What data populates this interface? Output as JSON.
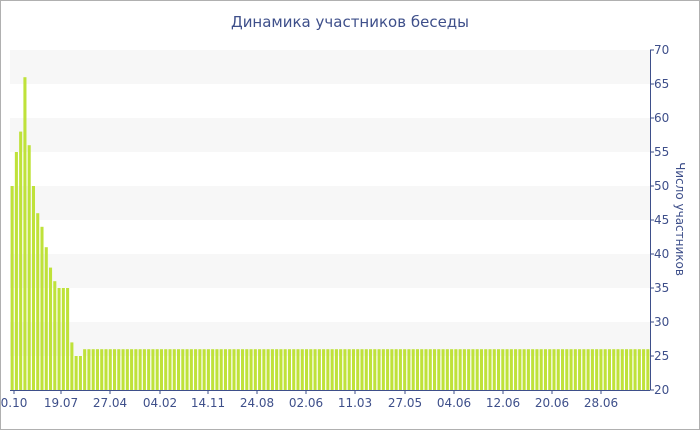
{
  "chart_data": {
    "type": "bar",
    "title": "Динамика участников беседы",
    "ylabel": "Число участников",
    "ylim": [
      20,
      70
    ],
    "yticks": [
      20,
      25,
      30,
      35,
      40,
      45,
      50,
      55,
      60,
      65,
      70
    ],
    "y_axis_position": "right",
    "bar_color": "#bfe23a",
    "band_color": "#f7f7f7",
    "axis_color": "#3e4f8a",
    "x_tick_labels": [
      "0.10",
      "19.07",
      "27.04",
      "04.02",
      "14.11",
      "24.08",
      "02.06",
      "11.03",
      "27.05",
      "04.06",
      "12.06",
      "20.06",
      "28.06"
    ],
    "values": [
      50,
      55,
      58,
      66,
      56,
      50,
      46,
      44,
      41,
      38,
      36,
      35,
      35,
      35,
      27,
      25,
      25,
      26,
      26,
      26,
      26,
      26,
      26,
      26,
      26,
      26,
      26,
      26,
      26,
      26,
      26,
      26,
      26,
      26,
      26,
      26,
      26,
      26,
      26,
      26,
      26,
      26,
      26,
      26,
      26,
      26,
      26,
      26,
      26,
      26,
      26,
      26,
      26,
      26,
      26,
      26,
      26,
      26,
      26,
      26,
      26,
      26,
      26,
      26,
      26,
      26,
      26,
      26,
      26,
      26,
      26,
      26,
      26,
      26,
      26,
      26,
      26,
      26,
      26,
      26,
      26,
      26,
      26,
      26,
      26,
      26,
      26,
      26,
      26,
      26,
      26,
      26,
      26,
      26,
      26,
      26,
      26,
      26,
      26,
      26,
      26,
      26,
      26,
      26,
      26,
      26,
      26,
      26,
      26,
      26,
      26,
      26,
      26,
      26,
      26,
      26,
      26,
      26,
      26,
      26,
      26,
      26,
      26,
      26,
      26,
      26,
      26,
      26,
      26,
      26,
      26,
      26,
      26,
      26,
      26,
      26,
      26,
      26,
      26,
      26,
      26,
      26,
      26,
      26,
      26,
      26,
      26,
      26,
      26,
      26
    ]
  }
}
